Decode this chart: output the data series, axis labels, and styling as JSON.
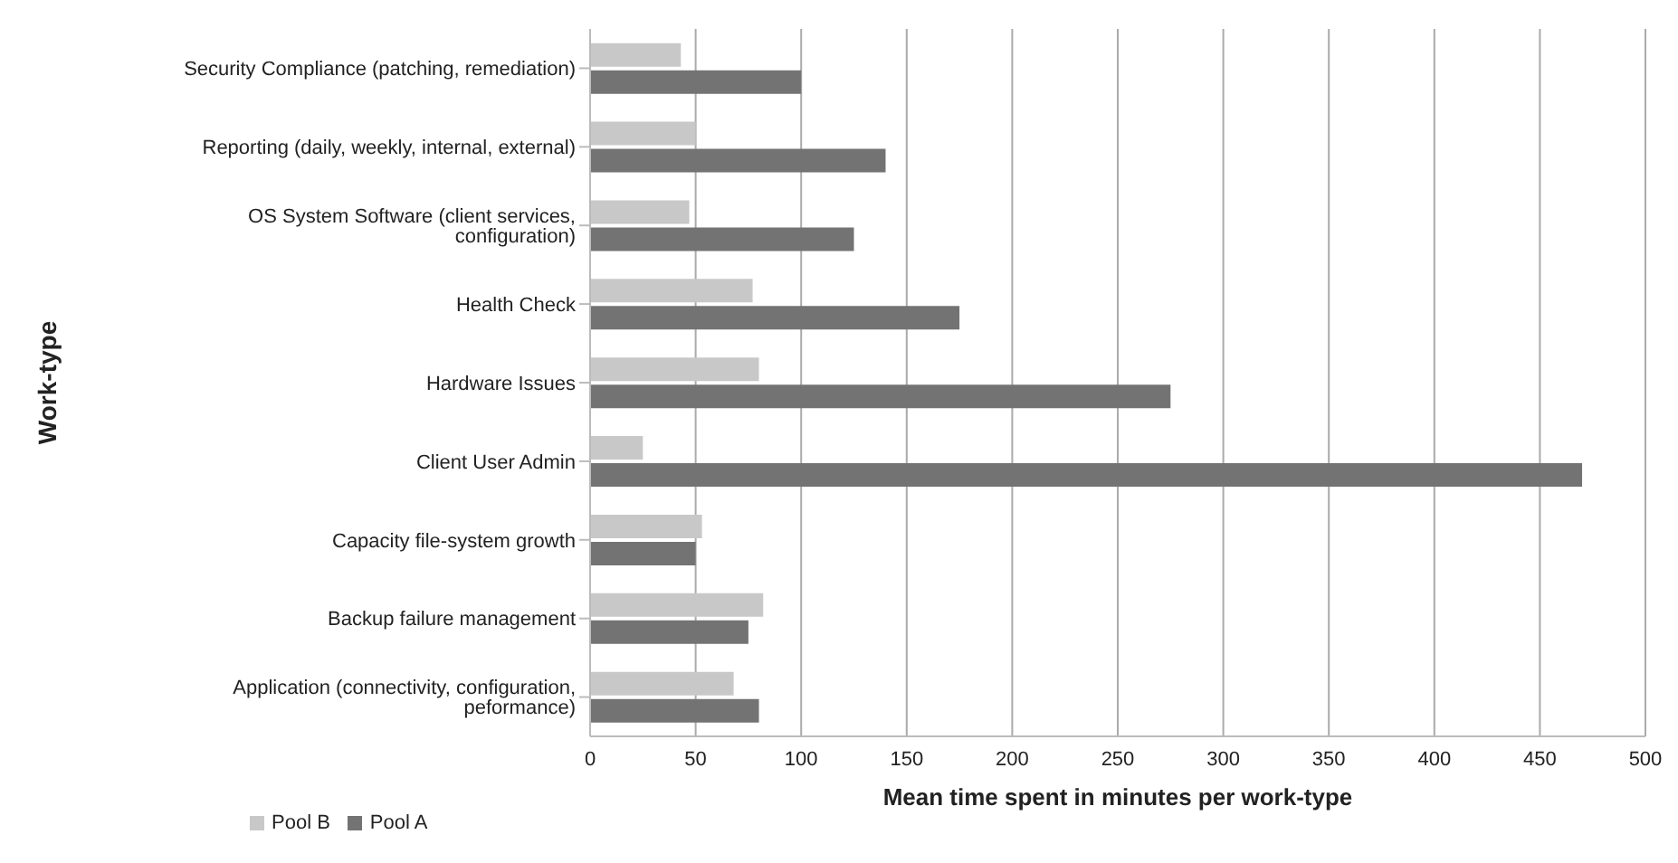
{
  "chart_data": {
    "type": "bar",
    "orientation": "horizontal",
    "xlabel": "Mean time spent in minutes per work-type",
    "ylabel": "Work-type",
    "categories": [
      "Security Compliance (patching, remediation)",
      "Reporting (daily, weekly, internal, external)",
      "OS System Software (client services, configuration)",
      "Health Check",
      "Hardware Issues",
      "Client User Admin",
      "Capacity file-system growth",
      "Backup failure management",
      "Application (connectivity, configuration, peformance)"
    ],
    "series": [
      {
        "name": "Pool B",
        "color": "#c8c8c8",
        "values": [
          43,
          50,
          47,
          77,
          80,
          25,
          53,
          82,
          68
        ]
      },
      {
        "name": "Pool A",
        "color": "#737373",
        "values": [
          100,
          140,
          125,
          175,
          275,
          470,
          50,
          75,
          80
        ]
      }
    ],
    "xlim": [
      0,
      500
    ],
    "xticks": [
      0,
      50,
      100,
      150,
      200,
      250,
      300,
      350,
      400,
      450,
      500
    ],
    "grid": "x",
    "legend": "bottom left"
  }
}
